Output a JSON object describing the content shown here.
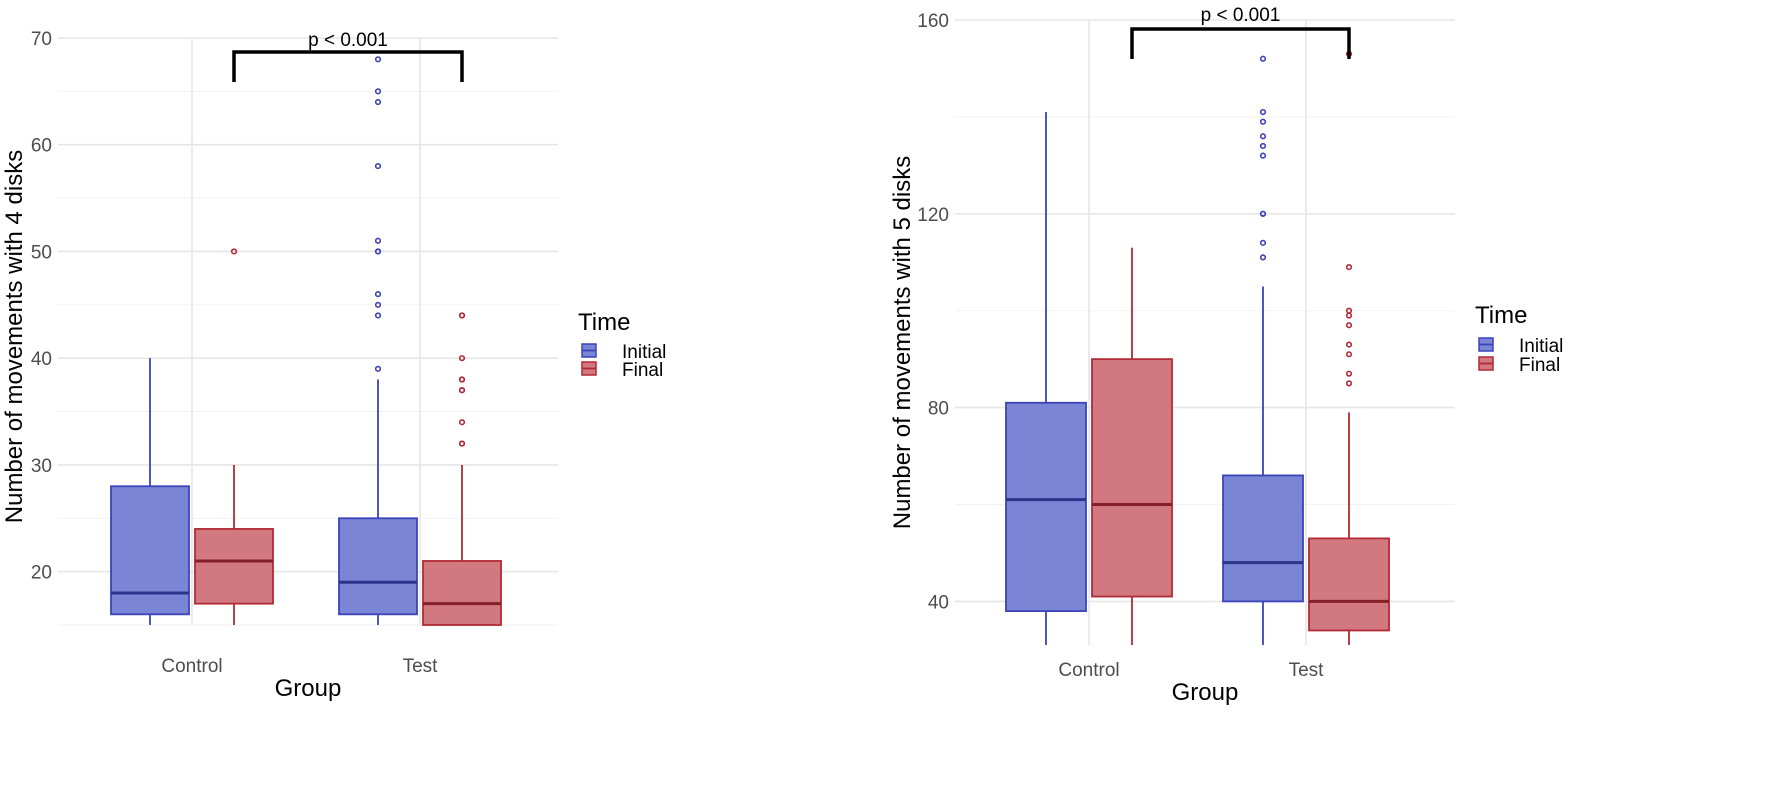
{
  "chart_data": [
    {
      "type": "boxplot",
      "xlabel": "Group",
      "ylabel": "Number of movements with 4 disks",
      "categories": [
        "Control",
        "Test"
      ],
      "ylim": [
        15,
        70
      ],
      "yticks": [
        20,
        30,
        40,
        50,
        60,
        70
      ],
      "legend": {
        "title": "Time",
        "position": "right"
      },
      "annotation": {
        "text": "p < 0.001",
        "from": "Control",
        "to": "Test"
      },
      "series": [
        {
          "name": "Initial",
          "color": "#3a44b8",
          "fill": "#7b85d6",
          "boxes": [
            {
              "group": "Control",
              "min": 15,
              "q1": 16,
              "median": 18,
              "q3": 28,
              "max": 40,
              "outliers": []
            },
            {
              "group": "Test",
              "min": 15,
              "q1": 16,
              "median": 19,
              "q3": 25,
              "max": 38,
              "outliers": [
                39,
                44,
                45,
                46,
                50,
                50,
                51,
                58,
                64,
                65,
                68
              ]
            }
          ]
        },
        {
          "name": "Final",
          "color": "#b22a35",
          "fill": "#d27880",
          "boxes": [
            {
              "group": "Control",
              "min": 15,
              "q1": 17,
              "median": 21,
              "q3": 24,
              "max": 30,
              "outliers": [
                50
              ]
            },
            {
              "group": "Test",
              "min": 15,
              "q1": 15,
              "median": 17,
              "q3": 21,
              "max": 30,
              "outliers": [
                32,
                32,
                34,
                37,
                37,
                38,
                38,
                40,
                44,
                44
              ]
            }
          ]
        }
      ]
    },
    {
      "type": "boxplot",
      "xlabel": "Group",
      "ylabel": "Number of movements with 5 disks",
      "categories": [
        "Control",
        "Test"
      ],
      "ylim": [
        31,
        160
      ],
      "yticks": [
        40,
        80,
        120,
        160
      ],
      "legend": {
        "title": "Time",
        "position": "right"
      },
      "annotation": {
        "text": "p < 0.001",
        "from": "Control",
        "to": "Test"
      },
      "series": [
        {
          "name": "Initial",
          "color": "#3a44b8",
          "fill": "#7b85d6",
          "boxes": [
            {
              "group": "Control",
              "min": 31,
              "q1": 38,
              "median": 61,
              "q3": 81,
              "max": 141,
              "outliers": []
            },
            {
              "group": "Test",
              "min": 31,
              "q1": 40,
              "median": 48,
              "q3": 66,
              "max": 105,
              "outliers": [
                111,
                114,
                120,
                120,
                132,
                134,
                136,
                139,
                141,
                152
              ]
            }
          ]
        },
        {
          "name": "Final",
          "color": "#b22a35",
          "fill": "#d27880",
          "boxes": [
            {
              "group": "Control",
              "min": 31,
              "q1": 41,
              "median": 60,
              "q3": 90,
              "max": 113,
              "outliers": []
            },
            {
              "group": "Test",
              "min": 31,
              "q1": 34,
              "median": 40,
              "q3": 53,
              "max": 79,
              "outliers": [
                85,
                87,
                91,
                93,
                97,
                99,
                100,
                109,
                153
              ]
            }
          ]
        }
      ]
    }
  ]
}
